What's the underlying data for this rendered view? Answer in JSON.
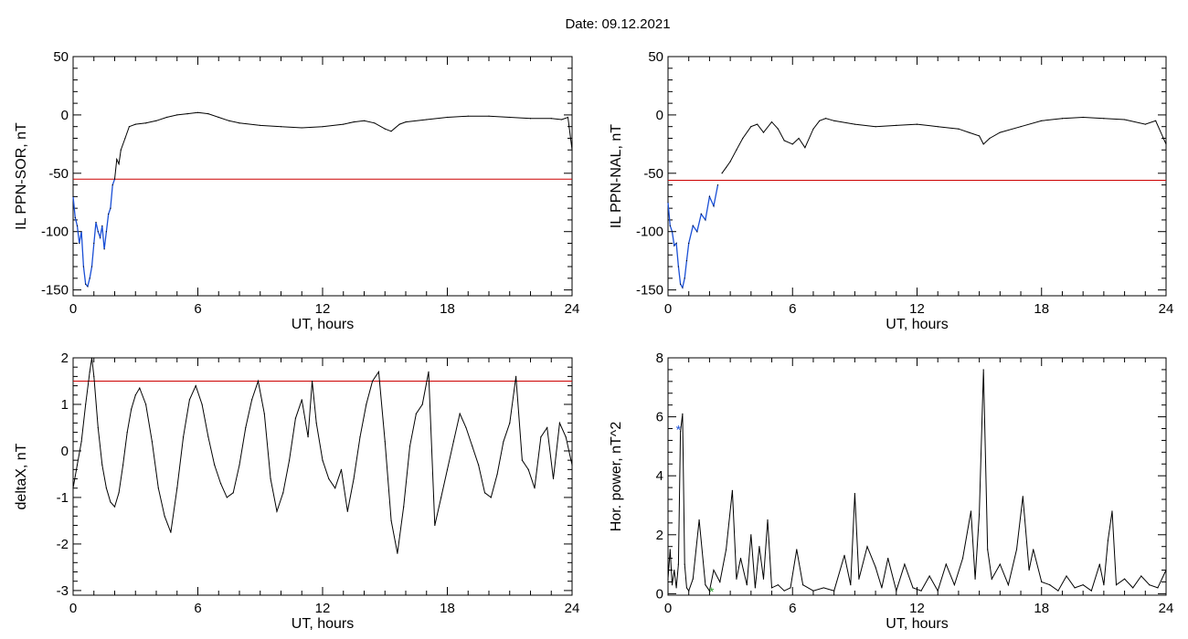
{
  "title": "Date:  09.12.2021",
  "chart_data": [
    {
      "type": "line",
      "xlabel": "UT, hours",
      "ylabel": "IL PPN-SOR, nT",
      "xlim": [
        0,
        24
      ],
      "ylim": [
        -155,
        50
      ],
      "xticks": [
        0,
        6,
        12,
        18,
        24
      ],
      "yticks": [
        -150,
        -100,
        -50,
        0,
        50
      ],
      "threshold": -55,
      "threshold_color": "#cc0000",
      "highlight_until": 2.0,
      "highlight_color": "#1a4fd6",
      "x": [
        0,
        0.1,
        0.2,
        0.3,
        0.4,
        0.5,
        0.6,
        0.7,
        0.8,
        0.9,
        1.0,
        1.1,
        1.2,
        1.3,
        1.4,
        1.5,
        1.6,
        1.7,
        1.8,
        1.9,
        2.0,
        2.1,
        2.2,
        2.3,
        2.5,
        2.7,
        3.0,
        3.5,
        4.0,
        4.5,
        5.0,
        5.5,
        6.0,
        6.5,
        7.0,
        7.5,
        8.0,
        9.0,
        10.0,
        11.0,
        12.0,
        13.0,
        13.5,
        14.0,
        14.5,
        15.0,
        15.3,
        15.7,
        16.0,
        17.0,
        18.0,
        19.0,
        20.0,
        21.0,
        22.0,
        23.0,
        23.5,
        23.8,
        24.0
      ],
      "y": [
        -70,
        -88,
        -95,
        -110,
        -100,
        -130,
        -145,
        -147,
        -140,
        -130,
        -110,
        -92,
        -100,
        -105,
        -95,
        -115,
        -100,
        -85,
        -80,
        -60,
        -55,
        -38,
        -42,
        -30,
        -20,
        -10,
        -8,
        -7,
        -5,
        -2,
        0,
        1,
        2,
        1,
        -2,
        -5,
        -7,
        -9,
        -10,
        -11,
        -10,
        -8,
        -6,
        -5,
        -7,
        -12,
        -14,
        -8,
        -6,
        -4,
        -2,
        -1,
        -1,
        -2,
        -3,
        -3,
        -4,
        -2,
        -30
      ]
    },
    {
      "type": "line",
      "xlabel": "UT, hours",
      "ylabel": "IL PPN-NAL, nT",
      "xlim": [
        0,
        24
      ],
      "ylim": [
        -155,
        50
      ],
      "xticks": [
        0,
        6,
        12,
        18,
        24
      ],
      "yticks": [
        -150,
        -100,
        -50,
        0,
        50
      ],
      "threshold": -56,
      "threshold_color": "#cc0000",
      "highlight_until": 2.5,
      "highlight_color": "#1a4fd6",
      "x": [
        0,
        0.1,
        0.2,
        0.3,
        0.4,
        0.5,
        0.6,
        0.7,
        0.8,
        0.9,
        1.0,
        1.2,
        1.4,
        1.6,
        1.8,
        2.0,
        2.2,
        2.4,
        2.6,
        2.8,
        3.0,
        3.3,
        3.6,
        4.0,
        4.3,
        4.6,
        5.0,
        5.3,
        5.6,
        6.0,
        6.3,
        6.6,
        7.0,
        7.3,
        7.6,
        8.0,
        9.0,
        10.0,
        11.0,
        12.0,
        13.0,
        14.0,
        14.5,
        15.0,
        15.2,
        15.5,
        16.0,
        17.0,
        18.0,
        19.0,
        20.0,
        21.0,
        22.0,
        23.0,
        23.5,
        24.0
      ],
      "y": [
        -75,
        -95,
        -100,
        -112,
        -110,
        -130,
        -145,
        -148,
        -140,
        -125,
        -110,
        -95,
        -100,
        -85,
        -90,
        -70,
        -78,
        -60,
        -50,
        -45,
        -40,
        -30,
        -20,
        -10,
        -8,
        -15,
        -6,
        -12,
        -22,
        -25,
        -20,
        -28,
        -12,
        -5,
        -3,
        -5,
        -8,
        -10,
        -9,
        -8,
        -10,
        -12,
        -15,
        -18,
        -25,
        -20,
        -15,
        -10,
        -5,
        -3,
        -2,
        -3,
        -4,
        -8,
        -5,
        -25
      ]
    },
    {
      "type": "line",
      "xlabel": "UT, hours",
      "ylabel": "deltaX, nT",
      "xlim": [
        0,
        24
      ],
      "ylim": [
        -3.1,
        2
      ],
      "xticks": [
        0,
        6,
        12,
        18,
        24
      ],
      "yticks": [
        -3,
        -2,
        -1,
        0,
        1,
        2
      ],
      "threshold": 1.5,
      "threshold_color": "#cc0000",
      "x": [
        0,
        0.2,
        0.4,
        0.6,
        0.8,
        0.9,
        1.0,
        1.2,
        1.4,
        1.6,
        1.8,
        2.0,
        2.2,
        2.4,
        2.6,
        2.8,
        3.0,
        3.2,
        3.5,
        3.8,
        4.1,
        4.4,
        4.7,
        5.0,
        5.3,
        5.6,
        5.9,
        6.2,
        6.5,
        6.8,
        7.1,
        7.4,
        7.7,
        8.0,
        8.3,
        8.6,
        8.9,
        9.2,
        9.5,
        9.8,
        10.1,
        10.4,
        10.7,
        11.0,
        11.3,
        11.5,
        11.7,
        12.0,
        12.3,
        12.6,
        12.9,
        13.2,
        13.5,
        13.8,
        14.1,
        14.4,
        14.7,
        15.0,
        15.3,
        15.6,
        15.9,
        16.2,
        16.5,
        16.8,
        17.1,
        17.4,
        17.7,
        18.0,
        18.3,
        18.6,
        18.9,
        19.2,
        19.5,
        19.8,
        20.1,
        20.4,
        20.7,
        21.0,
        21.3,
        21.6,
        21.9,
        22.2,
        22.5,
        22.8,
        23.1,
        23.4,
        23.7,
        24.0
      ],
      "y": [
        -0.8,
        -0.3,
        0.2,
        1.0,
        1.7,
        2.0,
        1.6,
        0.5,
        -0.3,
        -0.8,
        -1.1,
        -1.2,
        -0.9,
        -0.3,
        0.4,
        0.9,
        1.2,
        1.35,
        1.0,
        0.2,
        -0.8,
        -1.4,
        -1.75,
        -0.8,
        0.3,
        1.1,
        1.4,
        1.0,
        0.3,
        -0.3,
        -0.7,
        -1.0,
        -0.9,
        -0.3,
        0.5,
        1.1,
        1.5,
        0.8,
        -0.6,
        -1.3,
        -0.9,
        -0.2,
        0.7,
        1.1,
        0.3,
        1.5,
        0.6,
        -0.2,
        -0.6,
        -0.8,
        -0.4,
        -1.3,
        -0.6,
        0.3,
        1.0,
        1.5,
        1.7,
        0.2,
        -1.5,
        -2.2,
        -1.2,
        0.1,
        0.8,
        1.0,
        1.7,
        -1.6,
        -1.0,
        -0.4,
        0.2,
        0.8,
        0.5,
        0.1,
        -0.3,
        -0.9,
        -1.0,
        -0.5,
        0.2,
        0.6,
        1.6,
        -0.2,
        -0.4,
        -0.8,
        0.3,
        0.5,
        -0.6,
        0.6,
        0.3,
        -0.3
      ]
    },
    {
      "type": "line",
      "xlabel": "UT, hours",
      "ylabel": "Hor. power, nT^2",
      "xlim": [
        0,
        24
      ],
      "ylim": [
        -0.05,
        8
      ],
      "xticks": [
        0,
        6,
        12,
        18,
        24
      ],
      "yticks": [
        0,
        2,
        4,
        6,
        8
      ],
      "markers": [
        {
          "x": 0.5,
          "y": 5.6,
          "symbol": "*",
          "color": "#1a4fd6"
        },
        {
          "x": 2.1,
          "y": 0.1,
          "symbol": "*",
          "color": "#2aa02a"
        }
      ],
      "x": [
        0,
        0.1,
        0.2,
        0.3,
        0.4,
        0.5,
        0.6,
        0.7,
        0.8,
        0.9,
        1.0,
        1.2,
        1.5,
        1.8,
        2.0,
        2.2,
        2.5,
        2.8,
        3.1,
        3.3,
        3.5,
        3.8,
        4.0,
        4.2,
        4.4,
        4.6,
        4.8,
        5.0,
        5.3,
        5.6,
        5.9,
        6.2,
        6.5,
        7.0,
        7.5,
        8.0,
        8.5,
        8.8,
        9.0,
        9.2,
        9.6,
        10.0,
        10.3,
        10.6,
        11.0,
        11.4,
        11.8,
        12.2,
        12.6,
        13.0,
        13.4,
        13.8,
        14.2,
        14.6,
        14.8,
        15.0,
        15.2,
        15.4,
        15.6,
        16.0,
        16.4,
        16.8,
        17.1,
        17.4,
        17.6,
        18.0,
        18.4,
        18.8,
        19.2,
        19.6,
        20.0,
        20.4,
        20.8,
        21.0,
        21.2,
        21.4,
        21.6,
        22.0,
        22.4,
        22.8,
        23.2,
        23.6,
        24.0
      ],
      "y": [
        0.5,
        1.5,
        0.3,
        0.8,
        0.2,
        1.0,
        5.5,
        6.1,
        1.0,
        0.2,
        0.1,
        0.5,
        2.5,
        0.3,
        0.1,
        0.8,
        0.4,
        1.5,
        3.5,
        0.5,
        1.2,
        0.3,
        2.0,
        0.2,
        1.6,
        0.5,
        2.5,
        0.2,
        0.3,
        0.1,
        0.2,
        1.5,
        0.3,
        0.1,
        0.2,
        0.1,
        1.3,
        0.3,
        3.4,
        0.5,
        1.6,
        0.9,
        0.2,
        1.2,
        0.1,
        1.0,
        0.2,
        0.1,
        0.6,
        0.1,
        1.0,
        0.3,
        1.2,
        2.8,
        0.5,
        2.7,
        7.6,
        1.5,
        0.5,
        1.0,
        0.3,
        1.5,
        3.3,
        0.8,
        1.5,
        0.4,
        0.3,
        0.1,
        0.6,
        0.2,
        0.3,
        0.1,
        1.0,
        0.3,
        1.8,
        2.8,
        0.3,
        0.5,
        0.2,
        0.6,
        0.3,
        0.2,
        0.8
      ]
    }
  ]
}
